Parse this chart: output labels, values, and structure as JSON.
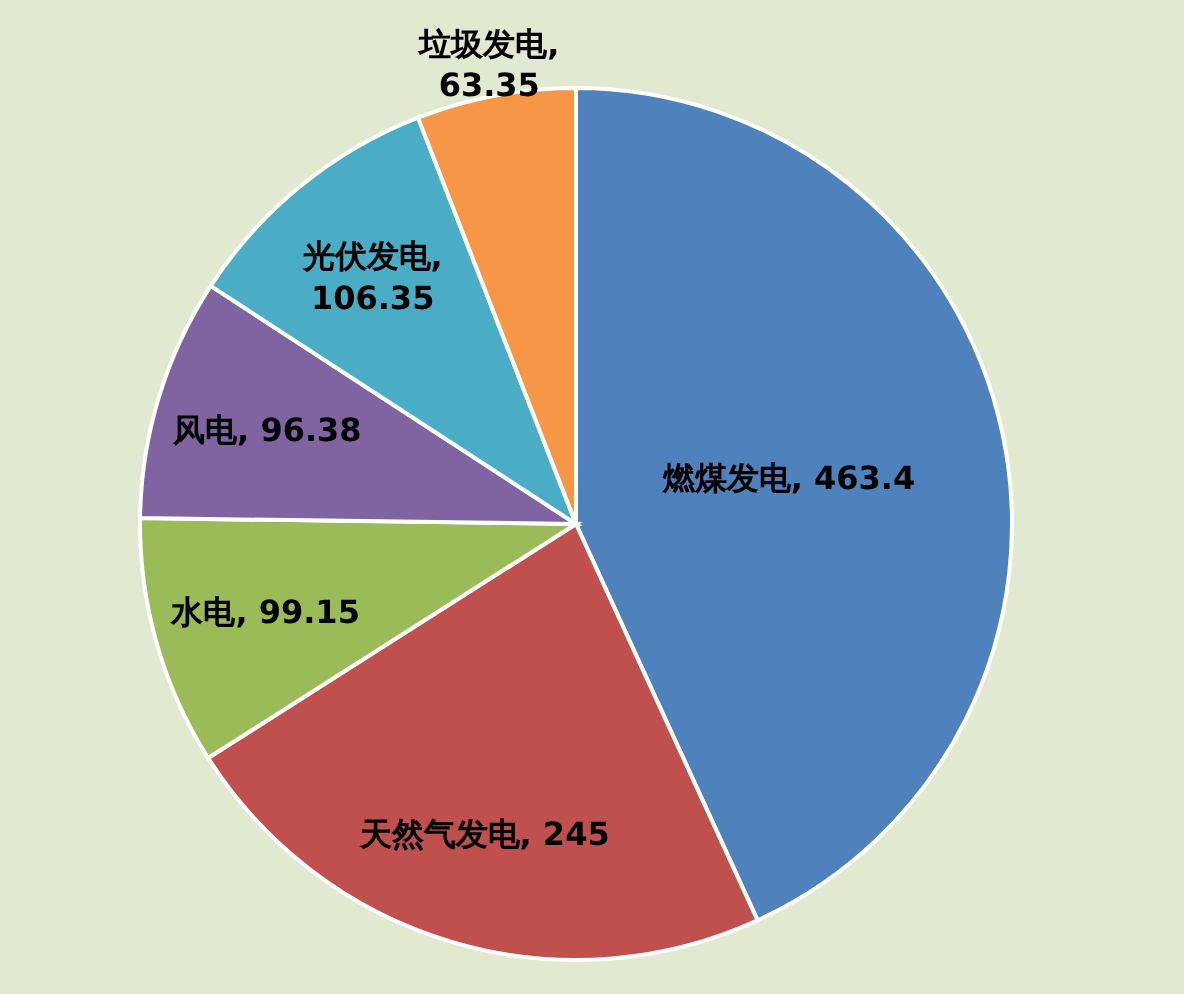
{
  "chart_data": {
    "type": "pie",
    "categories": [
      "燃煤发电",
      "天然气发电",
      "水电",
      "风电",
      "光伏发电",
      "垃圾发电"
    ],
    "values": [
      463.4,
      245,
      99.15,
      96.38,
      106.35,
      63.35
    ],
    "value_labels": [
      ", 463.4",
      ", 245",
      ", 99.15",
      ", 96.38",
      ", 106.35",
      ", 63.35"
    ],
    "colors": [
      "#4f81bd",
      "#c0504d",
      "#9bbb59",
      "#8064a2",
      "#4bacc6",
      "#f79646"
    ]
  }
}
